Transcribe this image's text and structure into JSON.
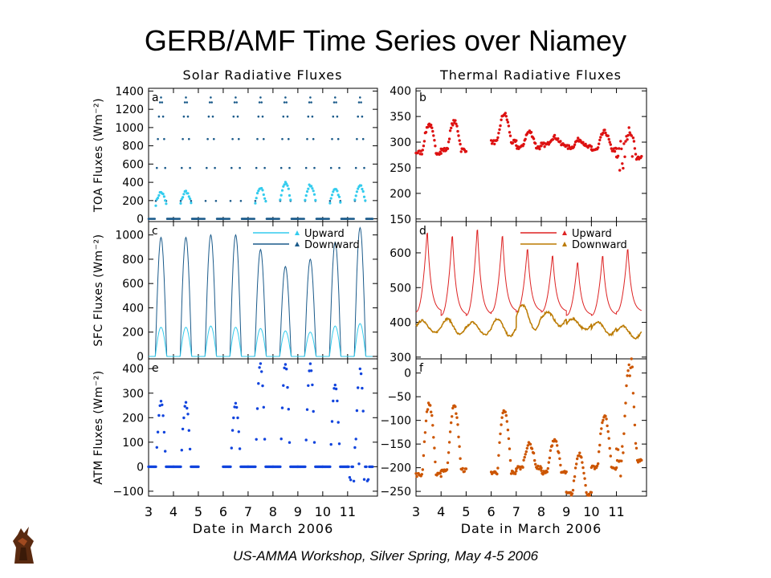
{
  "page": {
    "title": "GERB/AMF Time Series over Niamey",
    "footer": "US-AMMA Workshop, Silver Spring, May 4-5 2006"
  },
  "column_titles": {
    "left": "Solar Radiative Fluxes",
    "right": "Thermal Radiative Fluxes"
  },
  "x_axis": {
    "label": "Date in March 2006",
    "ticks": [
      3,
      4,
      5,
      6,
      7,
      8,
      9,
      10,
      11
    ],
    "xlim": [
      3.0,
      12.2
    ]
  },
  "colors": {
    "solar_up": "#33ccee",
    "solar_down": "#1a5a8a",
    "atm_solar": "#1144dd",
    "thermal_toa": "#dd1111",
    "thermal_up": "#dd2222",
    "thermal_down": "#bb7a00",
    "atm_thermal": "#cc5500"
  },
  "chart_data": [
    {
      "id": "a",
      "type": "scatter",
      "panel": "a",
      "ylabel": "TOA Fluxes (Wm⁻²)",
      "ylim": [
        -30,
        1430
      ],
      "yticks": [
        0,
        200,
        400,
        600,
        800,
        1000,
        1200,
        1400
      ],
      "daily": {
        "days": [
          3,
          4,
          5,
          6,
          7,
          8,
          9,
          10,
          11
        ],
        "upward_peak": [
          290,
          300,
          null,
          null,
          330,
          390,
          370,
          330,
          360
        ],
        "downward_peak": [
          1330,
          1330,
          1330,
          1330,
          1330,
          1330,
          1330,
          1330,
          1330
        ]
      },
      "series": [
        {
          "color": "#33ccee"
        },
        {
          "color": "#1a5a8a"
        }
      ]
    },
    {
      "id": "b",
      "type": "scatter",
      "panel": "b",
      "ylim": [
        145,
        405
      ],
      "yticks": [
        150,
        200,
        250,
        300,
        350,
        400
      ],
      "daily": {
        "days": [
          3,
          4,
          5,
          6,
          7,
          8,
          9,
          10,
          11
        ],
        "base": [
          280,
          285,
          null,
          300,
          290,
          295,
          290,
          285,
          270
        ],
        "peak": [
          335,
          340,
          null,
          355,
          320,
          310,
          305,
          320,
          315
        ]
      },
      "series": [
        {
          "color": "#dd1111"
        }
      ]
    },
    {
      "id": "c",
      "type": "line",
      "panel": "c",
      "ylabel": "SFC Fluxes (Wm⁻²)",
      "ylim": [
        -20,
        1110
      ],
      "yticks": [
        0,
        200,
        400,
        600,
        800,
        1000
      ],
      "legend": [
        "Upward",
        "Downward"
      ],
      "daily": {
        "days": [
          3,
          4,
          5,
          6,
          7,
          8,
          9,
          10,
          11
        ],
        "upward_peak": [
          240,
          240,
          250,
          240,
          230,
          210,
          200,
          250,
          270
        ],
        "downward_peak": [
          980,
          980,
          1000,
          1000,
          880,
          740,
          800,
          940,
          1060
        ]
      },
      "series": [
        {
          "name": "Upward",
          "color": "#33ccee"
        },
        {
          "name": "Downward",
          "color": "#1a5a8a"
        }
      ]
    },
    {
      "id": "d",
      "type": "line",
      "panel": "d",
      "ylim": [
        295,
        690
      ],
      "yticks": [
        300,
        400,
        500,
        600
      ],
      "legend": [
        "Upward",
        "Downward"
      ],
      "daily": {
        "days": [
          3,
          4,
          5,
          6,
          7,
          8,
          9,
          10,
          11
        ],
        "upward_min": [
          430,
          420,
          420,
          430,
          430,
          430,
          420,
          420,
          430
        ],
        "upward_max": [
          670,
          660,
          680,
          660,
          620,
          600,
          580,
          600,
          620
        ],
        "downward_min": [
          370,
          365,
          365,
          360,
          380,
          390,
          380,
          365,
          355
        ],
        "downward_max": [
          405,
          410,
          400,
          410,
          450,
          430,
          410,
          400,
          390
        ]
      },
      "series": [
        {
          "name": "Upward",
          "color": "#dd2222"
        },
        {
          "name": "Downward",
          "color": "#bb7a00"
        }
      ]
    },
    {
      "id": "e",
      "type": "scatter",
      "panel": "e",
      "ylabel": "ATM Fluxes (Wm⁻²)",
      "ylim": [
        -120,
        440
      ],
      "yticks": [
        -100,
        0,
        100,
        200,
        300,
        400
      ],
      "daily": {
        "days": [
          3,
          4,
          5,
          6,
          7,
          8,
          9,
          10,
          11
        ],
        "peak": [
          270,
          260,
          null,
          260,
          420,
          420,
          420,
          330,
          400
        ]
      },
      "series": [
        {
          "color": "#1144dd"
        }
      ]
    },
    {
      "id": "f",
      "type": "scatter",
      "panel": "f",
      "ylim": [
        -260,
        30
      ],
      "yticks": [
        -250,
        -200,
        -150,
        -100,
        -50,
        0
      ],
      "daily": {
        "days": [
          3,
          4,
          5,
          6,
          7,
          8,
          9,
          10,
          11
        ],
        "base": [
          -215,
          -205,
          null,
          -210,
          -200,
          -210,
          -255,
          -200,
          -185
        ],
        "peak": [
          -65,
          -70,
          null,
          -80,
          -150,
          -140,
          -170,
          -90,
          20
        ]
      },
      "series": [
        {
          "color": "#cc5500"
        }
      ]
    }
  ]
}
